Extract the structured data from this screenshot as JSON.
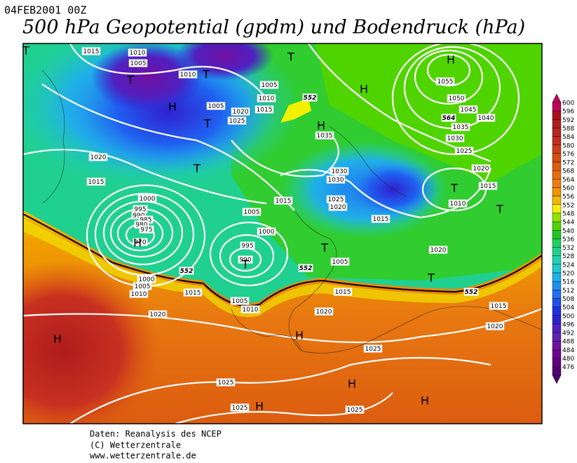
{
  "header": {
    "date": "04FEB2001 00Z",
    "title": "500 hPa Geopotential (gpdm) und Bodendruck (hPa)"
  },
  "map": {
    "isobar_labels": [
      1015,
      1010,
      1005,
      1010,
      1005,
      1010,
      1015,
      1005,
      1020,
      1025,
      1035,
      1055,
      1050,
      1045,
      1040,
      1035,
      1030,
      1025,
      1020,
      1015,
      1010,
      1020,
      1015,
      1030,
      1030,
      1025,
      1020,
      1015,
      1015,
      1005,
      1000,
      995,
      990,
      985,
      980,
      975,
      970,
      1000,
      995,
      990,
      1020,
      1005,
      1000,
      1005,
      1010,
      1015,
      1015,
      1005,
      1010,
      1020,
      1020,
      1015,
      1020,
      1025,
      1025,
      1025,
      1025
    ],
    "contour_labels": [
      552,
      564,
      552,
      552,
      552
    ],
    "centers": [
      "T",
      "T",
      "H",
      "T",
      "T",
      "T",
      "T",
      "H",
      "H",
      "H",
      "T",
      "T",
      "T",
      "T",
      "H",
      "T",
      "H",
      "H",
      "H",
      "H",
      "H"
    ]
  },
  "legend": {
    "levels": [
      600,
      596,
      592,
      588,
      584,
      580,
      576,
      572,
      568,
      564,
      560,
      556,
      552,
      548,
      544,
      540,
      536,
      532,
      528,
      524,
      520,
      516,
      512,
      508,
      504,
      500,
      496,
      492,
      488,
      484,
      480,
      476
    ],
    "colors": [
      "#c0005a",
      "#a8101c",
      "#b01c1c",
      "#b82424",
      "#c02c20",
      "#cc3c18",
      "#d44c10",
      "#dc5c10",
      "#e46c10",
      "#ec7c10",
      "#f09400",
      "#f0b800",
      "#f0f000",
      "#90e400",
      "#50d400",
      "#20c820",
      "#20d060",
      "#20d090",
      "#20d0b0",
      "#20c8d0",
      "#20b0e8",
      "#2090f0",
      "#2070f0",
      "#2050e8",
      "#2030e0",
      "#3020d0",
      "#5020c0",
      "#6020b0",
      "#7010a0",
      "#700090",
      "#600080",
      "#500070"
    ]
  },
  "footer": [
    "Daten: Reanalysis des NCEP",
    "(C) Wetterzentrale",
    "www.wetterzentrale.de"
  ]
}
